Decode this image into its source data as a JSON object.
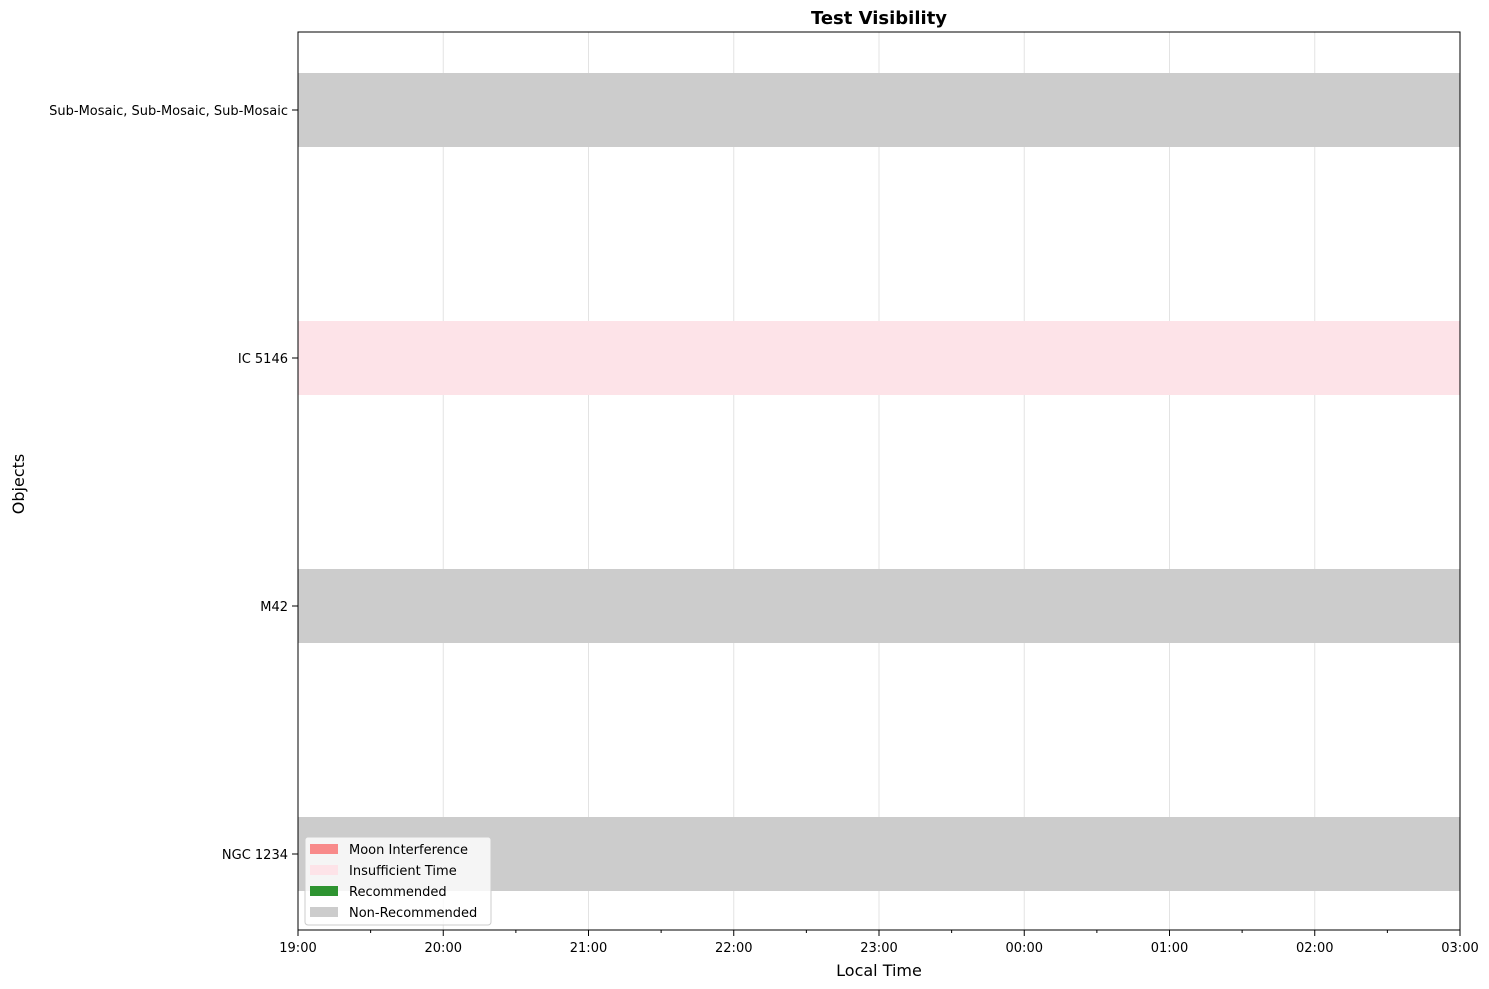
{
  "chart_data": {
    "type": "bar",
    "orientation": "horizontal",
    "title": "Test Visibility",
    "xlabel": "Local Time",
    "ylabel": "Objects",
    "x_axis_type": "time",
    "xlim": [
      "19:00",
      "03:00"
    ],
    "x_ticks": [
      "19:00",
      "20:00",
      "21:00",
      "22:00",
      "23:00",
      "00:00",
      "01:00",
      "02:00",
      "03:00"
    ],
    "grid": "vertical",
    "legend_position": "bottom-left",
    "legend": [
      {
        "label": "Moon Interference",
        "color": "#f88a8a"
      },
      {
        "label": "Insufficient Time",
        "color": "#fde3e8"
      },
      {
        "label": "Recommended",
        "color": "#2e9431"
      },
      {
        "label": "Non-Recommended",
        "color": "#cccccc"
      }
    ],
    "categories": [
      "NGC 1234",
      "M42",
      "IC 5146",
      "Sub-Mosaic, Sub-Mosaic, Sub-Mosaic"
    ],
    "bars": [
      {
        "object": "NGC 1234",
        "start": "19:00",
        "end": "03:00",
        "status": "Non-Recommended",
        "color": "#cccccc"
      },
      {
        "object": "M42",
        "start": "19:00",
        "end": "03:00",
        "status": "Non-Recommended",
        "color": "#cccccc"
      },
      {
        "object": "IC 5146",
        "start": "19:00",
        "end": "03:00",
        "status": "Insufficient Time",
        "color": "#fde3e8"
      },
      {
        "object": "Sub-Mosaic, Sub-Mosaic, Sub-Mosaic",
        "start": "19:00",
        "end": "03:00",
        "status": "Non-Recommended",
        "color": "#cccccc"
      }
    ]
  }
}
